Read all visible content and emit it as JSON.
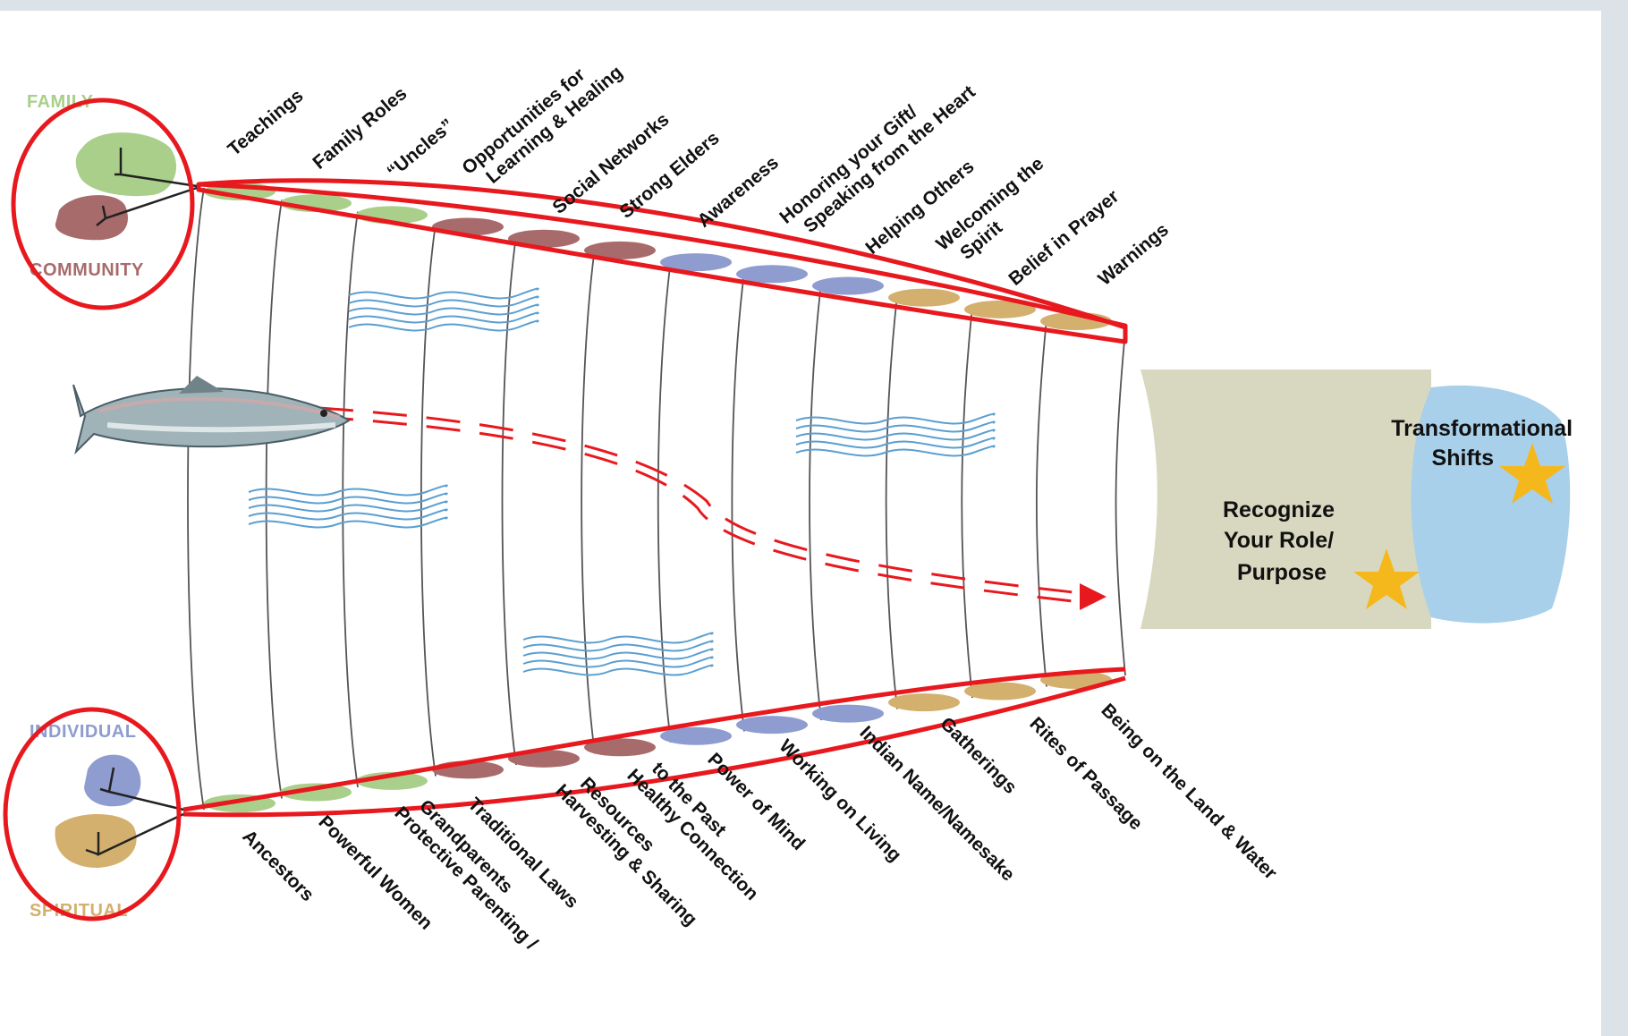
{
  "legend": {
    "family": "FAMILY",
    "community": "COMMUNITY",
    "individual": "INDIVIDUAL",
    "spiritual": "SPIRITUAL"
  },
  "top_labels": [
    [
      "Teachings"
    ],
    [
      "Family Roles"
    ],
    [
      "“Uncles”"
    ],
    [
      "Opportunities for",
      "Learning & Healing"
    ],
    [
      "Social Networks"
    ],
    [
      "Strong Elders"
    ],
    [
      "Awareness"
    ],
    [
      "Honoring your Gift/",
      "Speaking from the Heart"
    ],
    [
      "Helping Others"
    ],
    [
      "Welcoming the",
      "Spirit"
    ],
    [
      "Belief in Prayer"
    ],
    [
      "Warnings"
    ]
  ],
  "bottom_labels": [
    [
      "Ancestors"
    ],
    [
      "Powerful Women"
    ],
    [
      "Protective Parenting /",
      "Grandparents"
    ],
    [
      "Traditional Laws"
    ],
    [
      "Harvesting & Sharing",
      "Resources"
    ],
    [
      "Healthy Connection",
      "to the Past"
    ],
    [
      "Power of Mind"
    ],
    [
      "Working on Living"
    ],
    [
      "Indian Name/Namesake"
    ],
    [
      "Gatherings"
    ],
    [
      "Rites of Passage"
    ],
    [
      "Being on the Land & Water"
    ]
  ],
  "result": {
    "transformational": [
      "Transformational",
      "Shifts"
    ],
    "recognize": [
      "Recognize",
      "Your Role/",
      "Purpose"
    ]
  },
  "colors": {
    "family": "#a9cf8a",
    "community": "#a86b6b",
    "individual": "#8e9ccf",
    "spiritual": "#d4b06e",
    "highlight": "#e8191e",
    "water": "#5a9fd1",
    "sand": "#d8d8c0",
    "sea": "#a8d0ea",
    "star": "#f5b81c"
  },
  "icons": {
    "fish": "salmon-icon",
    "star": "star-icon"
  }
}
